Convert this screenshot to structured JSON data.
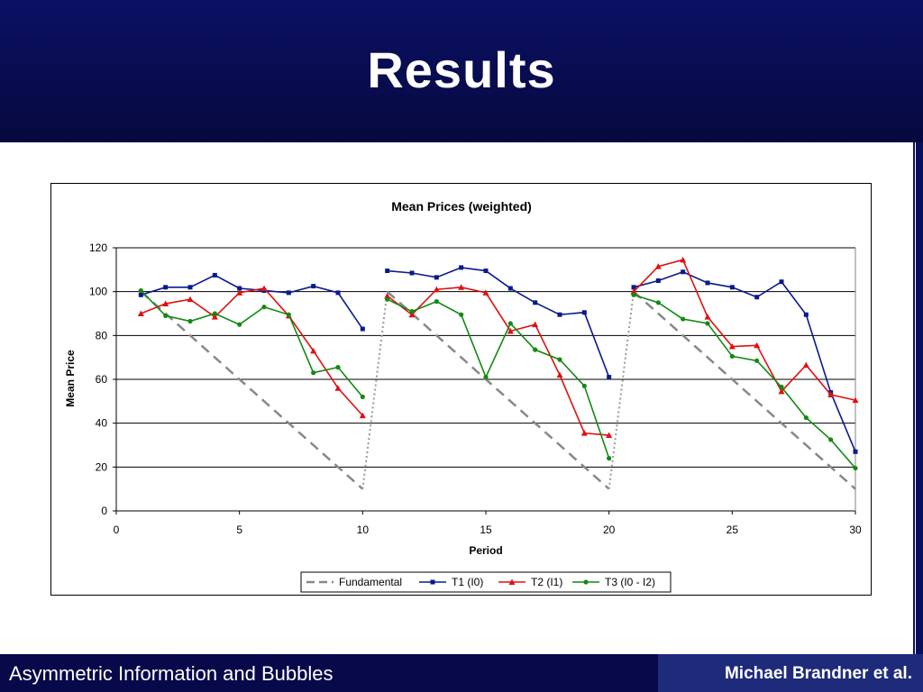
{
  "slide": {
    "title": "Results",
    "footer_left": "Asymmetric Information and Bubbles",
    "footer_right": "Michael Brandner et al."
  },
  "colors": {
    "header_bg": "#0b1064",
    "footer_bg": "#07094a",
    "fundamental": "#888888",
    "t1": "#0a1a8c",
    "t2": "#e01010",
    "t3": "#128a12"
  },
  "chart_data": {
    "type": "line",
    "title": "Mean Prices (weighted)",
    "xlabel": "Period",
    "ylabel": "Mean Price",
    "xlim": [
      0,
      30
    ],
    "ylim": [
      0,
      120
    ],
    "xticks": [
      0,
      5,
      10,
      15,
      20,
      25,
      30
    ],
    "yticks": [
      0,
      20,
      40,
      60,
      80,
      100,
      120
    ],
    "grid": "horizontal",
    "legend_position": "bottom",
    "series": [
      {
        "name": "Fundamental",
        "style": "dashed",
        "segments": [
          [
            [
              1,
              100
            ],
            [
              10,
              10
            ]
          ],
          [
            [
              11,
              100
            ],
            [
              20,
              10
            ]
          ],
          [
            [
              21,
              100
            ],
            [
              30,
              10
            ]
          ]
        ],
        "jumps": [
          [
            [
              10,
              10
            ],
            [
              11,
              100
            ]
          ],
          [
            [
              20,
              10
            ],
            [
              21,
              100
            ]
          ]
        ]
      },
      {
        "name": "T1 (I0)",
        "marker": "square",
        "segments": [
          [
            [
              1,
              98.5
            ],
            [
              2,
              102
            ],
            [
              3,
              102
            ],
            [
              4,
              107.5
            ],
            [
              5,
              101.5
            ],
            [
              6,
              100.5
            ],
            [
              7,
              99.5
            ],
            [
              8,
              102.5
            ],
            [
              9,
              99.5
            ],
            [
              10,
              83
            ]
          ],
          [
            [
              11,
              109.5
            ],
            [
              12,
              108.5
            ],
            [
              13,
              106.5
            ],
            [
              14,
              111
            ],
            [
              15,
              109.5
            ],
            [
              16,
              101.5
            ],
            [
              17,
              95
            ],
            [
              18,
              89.5
            ],
            [
              19,
              90.5
            ],
            [
              20,
              61
            ]
          ],
          [
            [
              21,
              102
            ],
            [
              22,
              105
            ],
            [
              23,
              109
            ],
            [
              24,
              104
            ],
            [
              25,
              102
            ],
            [
              26,
              97.5
            ],
            [
              27,
              104.5
            ],
            [
              28,
              89.5
            ],
            [
              29,
              54
            ],
            [
              30,
              27
            ]
          ]
        ]
      },
      {
        "name": "T2 (I1)",
        "marker": "triangle",
        "segments": [
          [
            [
              1,
              90
            ],
            [
              2,
              94.5
            ],
            [
              3,
              96.5
            ],
            [
              4,
              88.5
            ],
            [
              5,
              99.5
            ],
            [
              6,
              101.5
            ],
            [
              7,
              89
            ],
            [
              8,
              73
            ],
            [
              9,
              56
            ],
            [
              10,
              43.5
            ]
          ],
          [
            [
              11,
              98
            ],
            [
              12,
              89.5
            ],
            [
              13,
              101
            ],
            [
              14,
              102
            ],
            [
              15,
              99.5
            ],
            [
              16,
              82
            ],
            [
              17,
              85
            ],
            [
              18,
              62
            ],
            [
              19,
              35.5
            ],
            [
              20,
              34.5
            ]
          ],
          [
            [
              21,
              100
            ],
            [
              22,
              111.5
            ],
            [
              23,
              114.5
            ],
            [
              24,
              88.5
            ],
            [
              25,
              75
            ],
            [
              26,
              75.5
            ],
            [
              27,
              54.5
            ],
            [
              28,
              66.5
            ],
            [
              29,
              53
            ],
            [
              30,
              50.5
            ]
          ]
        ]
      },
      {
        "name": "T3 (I0 - I2)",
        "marker": "circle",
        "segments": [
          [
            [
              1,
              100.5
            ],
            [
              2,
              89
            ],
            [
              3,
              86.5
            ],
            [
              4,
              90
            ],
            [
              5,
              85
            ],
            [
              6,
              93
            ],
            [
              7,
              89.5
            ],
            [
              8,
              63
            ],
            [
              9,
              65.5
            ],
            [
              10,
              52
            ]
          ],
          [
            [
              11,
              96.5
            ],
            [
              12,
              91
            ],
            [
              13,
              95.5
            ],
            [
              14,
              89.5
            ],
            [
              15,
              61
            ],
            [
              16,
              85.5
            ],
            [
              17,
              73.5
            ],
            [
              18,
              69
            ],
            [
              19,
              57
            ],
            [
              20,
              24
            ]
          ],
          [
            [
              21,
              98.5
            ],
            [
              22,
              95
            ],
            [
              23,
              87.5
            ],
            [
              24,
              85.5
            ],
            [
              25,
              70.5
            ],
            [
              26,
              68.5
            ],
            [
              27,
              56.5
            ],
            [
              28,
              42.5
            ],
            [
              29,
              32.5
            ],
            [
              30,
              19.5
            ]
          ]
        ]
      }
    ]
  }
}
